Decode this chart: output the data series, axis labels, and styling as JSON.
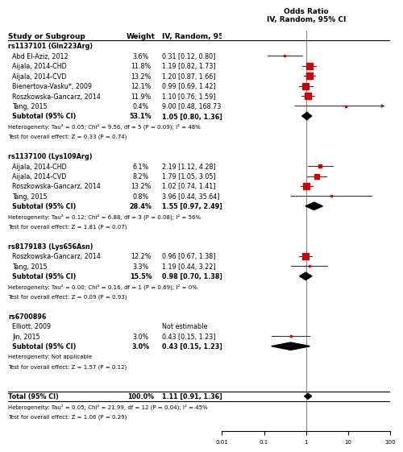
{
  "groups": [
    {
      "header": "rs1137101 (Gln223Arg)",
      "studies": [
        {
          "name": "Abd El-Aziz, 2012",
          "weight": "3.6%",
          "or": 0.31,
          "ci_lo": 0.12,
          "ci_hi": 0.8,
          "label": "0.31 [0.12, 0.80]",
          "arrow_right": false
        },
        {
          "name": "Aijala, 2014-CHD",
          "weight": "11.8%",
          "or": 1.19,
          "ci_lo": 0.82,
          "ci_hi": 1.73,
          "label": "1.19 [0.82, 1.73]",
          "arrow_right": false
        },
        {
          "name": "Aijala, 2014-CVD",
          "weight": "13.2%",
          "or": 1.2,
          "ci_lo": 0.87,
          "ci_hi": 1.66,
          "label": "1.20 [0.87, 1.66]",
          "arrow_right": false
        },
        {
          "name": "Bienertova-Vasku*, 2009",
          "weight": "12.1%",
          "or": 0.99,
          "ci_lo": 0.69,
          "ci_hi": 1.42,
          "label": "0.99 [0.69, 1.42]",
          "arrow_right": false
        },
        {
          "name": "Roszkowska-Gancarz, 2014",
          "weight": "11.9%",
          "or": 1.1,
          "ci_lo": 0.76,
          "ci_hi": 1.59,
          "label": "1.10 [0.76, 1.59]",
          "arrow_right": false
        },
        {
          "name": "Tang, 2015",
          "weight": "0.4%",
          "or": 9.0,
          "ci_lo": 0.48,
          "ci_hi": 168.73,
          "label": "9.00 [0.48, 168.73]",
          "arrow_right": true
        }
      ],
      "subtotal": {
        "name": "Subtotal (95% CI)",
        "weight": "53.1%",
        "or": 1.05,
        "ci_lo": 0.8,
        "ci_hi": 1.36,
        "label": "1.05 [0.80, 1.36]"
      },
      "heterogeneity": "Heterogeneity: Tau² = 0.05; Chi² = 9.56, df = 5 (P = 0.09); I² = 48%",
      "test": "Test for overall effect: Z = 0.33 (P = 0.74)"
    },
    {
      "header": "rs1137100 (Lys109Arg)",
      "studies": [
        {
          "name": "Aijala, 2014-CHD",
          "weight": "6.1%",
          "or": 2.19,
          "ci_lo": 1.12,
          "ci_hi": 4.28,
          "label": "2.19 [1.12, 4.28]",
          "arrow_right": false
        },
        {
          "name": "Aijala, 2014-CVD",
          "weight": "8.2%",
          "or": 1.79,
          "ci_lo": 1.05,
          "ci_hi": 3.05,
          "label": "1.79 [1.05, 3.05]",
          "arrow_right": false
        },
        {
          "name": "Roszkowska-Gancarz, 2014",
          "weight": "13.2%",
          "or": 1.02,
          "ci_lo": 0.74,
          "ci_hi": 1.41,
          "label": "1.02 [0.74, 1.41]",
          "arrow_right": false
        },
        {
          "name": "Tang, 2015",
          "weight": "0.8%",
          "or": 3.96,
          "ci_lo": 0.44,
          "ci_hi": 35.64,
          "label": "3.96 [0.44, 35.64]",
          "arrow_right": false
        }
      ],
      "subtotal": {
        "name": "Subtotal (95% CI)",
        "weight": "28.4%",
        "or": 1.55,
        "ci_lo": 0.97,
        "ci_hi": 2.49,
        "label": "1.55 [0.97, 2.49]"
      },
      "heterogeneity": "Heterogeneity: Tau² = 0.12; Chi² = 6.88, df = 3 (P = 0.08); I² = 56%",
      "test": "Test for overall effect: Z = 1.81 (P = 0.07)"
    },
    {
      "header": "rs8179183 (Lys656Asn)",
      "studies": [
        {
          "name": "Roszkowska-Gancarz, 2014",
          "weight": "12.2%",
          "or": 0.96,
          "ci_lo": 0.67,
          "ci_hi": 1.38,
          "label": "0.96 [0.67, 1.38]",
          "arrow_right": false
        },
        {
          "name": "Tang, 2015",
          "weight": "3.3%",
          "or": 1.19,
          "ci_lo": 0.44,
          "ci_hi": 3.22,
          "label": "1.19 [0.44, 3.22]",
          "arrow_right": false
        }
      ],
      "subtotal": {
        "name": "Subtotal (95% CI)",
        "weight": "15.5%",
        "or": 0.98,
        "ci_lo": 0.7,
        "ci_hi": 1.38,
        "label": "0.98 [0.70, 1.38]"
      },
      "heterogeneity": "Heterogeneity: Tau² = 0.00; Chi² = 0.16, df = 1 (P = 0.69); I² = 0%",
      "test": "Test for overall effect: Z = 0.09 (P = 0.93)"
    },
    {
      "header": "rs6700896",
      "studies": [
        {
          "name": "Elliott, 2009",
          "weight": "",
          "or": null,
          "ci_lo": null,
          "ci_hi": null,
          "label": "Not estimable",
          "arrow_right": false
        },
        {
          "name": "Jin, 2015",
          "weight": "3.0%",
          "or": 0.43,
          "ci_lo": 0.15,
          "ci_hi": 1.23,
          "label": "0.43 [0.15, 1.23]",
          "arrow_right": false
        }
      ],
      "subtotal": {
        "name": "Subtotal (95% CI)",
        "weight": "3.0%",
        "or": 0.43,
        "ci_lo": 0.15,
        "ci_hi": 1.23,
        "label": "0.43 [0.15, 1.23]"
      },
      "heterogeneity": "Heterogeneity: Not applicable",
      "test": "Test for overall effect: Z = 1.57 (P = 0.12)"
    }
  ],
  "total": {
    "name": "Total (95% CI)",
    "weight": "100.0%",
    "or": 1.11,
    "ci_lo": 0.91,
    "ci_hi": 1.36,
    "label": "1.11 [0.91, 1.36]"
  },
  "total_heterogeneity": "Heterogeneity: Tau² = 0.05; Chi² = 21.99, df = 12 (P = 0.04); I² = 45%",
  "total_test": "Test for overall effect: Z = 1.06 (P = 0.29)",
  "xmin": 0.01,
  "xmax": 100,
  "xticks": [
    0.01,
    0.1,
    1,
    10,
    100
  ],
  "vline_x": 1.0,
  "ci_line_color": "#333333",
  "study_marker_color": "#cc0000",
  "diamond_color": "#000000",
  "text_color": "#000000",
  "bg_color": "#ffffff"
}
